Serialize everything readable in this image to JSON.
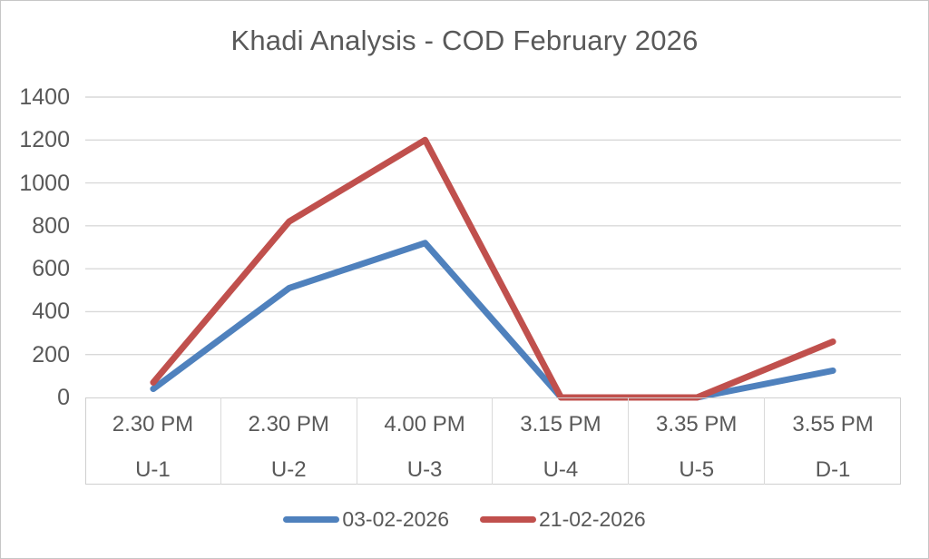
{
  "title": "Khadi Analysis - COD February 2026",
  "chart_data": {
    "type": "line",
    "title": "Khadi Analysis - COD February 2026",
    "categories": [
      "U-1",
      "U-2",
      "U-3",
      "U-4",
      "U-5",
      "D-1"
    ],
    "x_axis": {
      "times": [
        "2.30 PM",
        "2.30 PM",
        "4.00 PM",
        "3.15 PM",
        "3.35 PM",
        "3.55 PM"
      ],
      "units": [
        "U-1",
        "U-2",
        "U-3",
        "U-4",
        "U-5",
        "D-1"
      ]
    },
    "series": [
      {
        "name": "03-02-2026",
        "color": "#4F81BD",
        "values": [
          40,
          510,
          720,
          0,
          0,
          125
        ]
      },
      {
        "name": "21-02-2026",
        "color": "#C0504D",
        "values": [
          70,
          820,
          1200,
          0,
          0,
          260
        ]
      }
    ],
    "ylim": [
      0,
      1400
    ],
    "yticks": [
      0,
      200,
      400,
      600,
      800,
      1000,
      1200,
      1400
    ],
    "grid": true,
    "legend_position": "bottom"
  },
  "colors": {
    "text": "#595959",
    "gridline": "#d9d9d9",
    "axis_line": "#c9c9c9",
    "frame_border": "#c6c6c6",
    "background": "#ffffff",
    "series1": "#4F81BD",
    "series2": "#C0504D"
  }
}
